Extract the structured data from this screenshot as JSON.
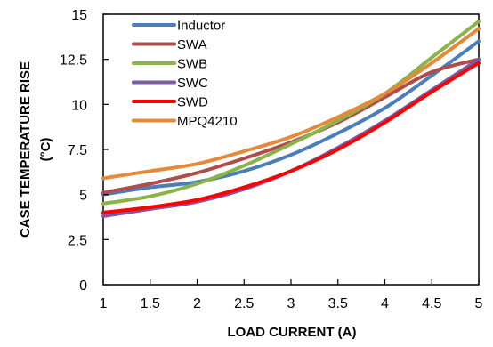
{
  "chart_data": {
    "type": "line",
    "title": "",
    "xlabel": "LOAD CURRENT  (A)",
    "ylabel_lines": [
      "CASE  TEMPERATURE  RISE",
      "(°C)"
    ],
    "xlim": [
      1,
      5
    ],
    "ylim": [
      0,
      15
    ],
    "xticks": [
      1,
      1.5,
      2,
      2.5,
      3,
      3.5,
      4,
      4.5,
      5
    ],
    "yticks": [
      0,
      2.5,
      5,
      7.5,
      10,
      12.5,
      15
    ],
    "xtick_labels": [
      "1",
      "1.5",
      "2",
      "2.5",
      "3",
      "3.5",
      "4",
      "4.5",
      "5"
    ],
    "ytick_labels": [
      "0",
      "2.5",
      "5",
      "7.5",
      "10",
      "12.5",
      "15"
    ],
    "grid": false,
    "legend_position": "top-left",
    "x": [
      1,
      1.5,
      2,
      2.5,
      3,
      3.5,
      4,
      4.5,
      5
    ],
    "series": [
      {
        "name": "Inductor",
        "color": "#4a7ebb",
        "values": [
          5.0,
          5.4,
          5.7,
          6.3,
          7.2,
          8.4,
          9.8,
          11.6,
          13.5
        ]
      },
      {
        "name": "SWA",
        "color": "#b04c4c",
        "values": [
          5.1,
          5.6,
          6.2,
          7.0,
          7.9,
          9.0,
          10.4,
          11.8,
          12.5
        ]
      },
      {
        "name": "SWB",
        "color": "#8ab34a",
        "values": [
          4.5,
          4.9,
          5.6,
          6.6,
          7.8,
          9.1,
          10.6,
          12.6,
          14.6
        ]
      },
      {
        "name": "SWC",
        "color": "#7b5aa6",
        "values": [
          3.8,
          4.2,
          4.6,
          5.3,
          6.3,
          7.6,
          9.1,
          10.8,
          12.5
        ]
      },
      {
        "name": "SWD",
        "color": "#ff0000",
        "values": [
          4.0,
          4.3,
          4.7,
          5.4,
          6.3,
          7.5,
          9.0,
          10.7,
          12.3
        ]
      },
      {
        "name": "MPQ4210",
        "color": "#e6893a",
        "values": [
          5.9,
          6.3,
          6.7,
          7.4,
          8.2,
          9.3,
          10.6,
          12.3,
          14.2
        ]
      }
    ]
  }
}
